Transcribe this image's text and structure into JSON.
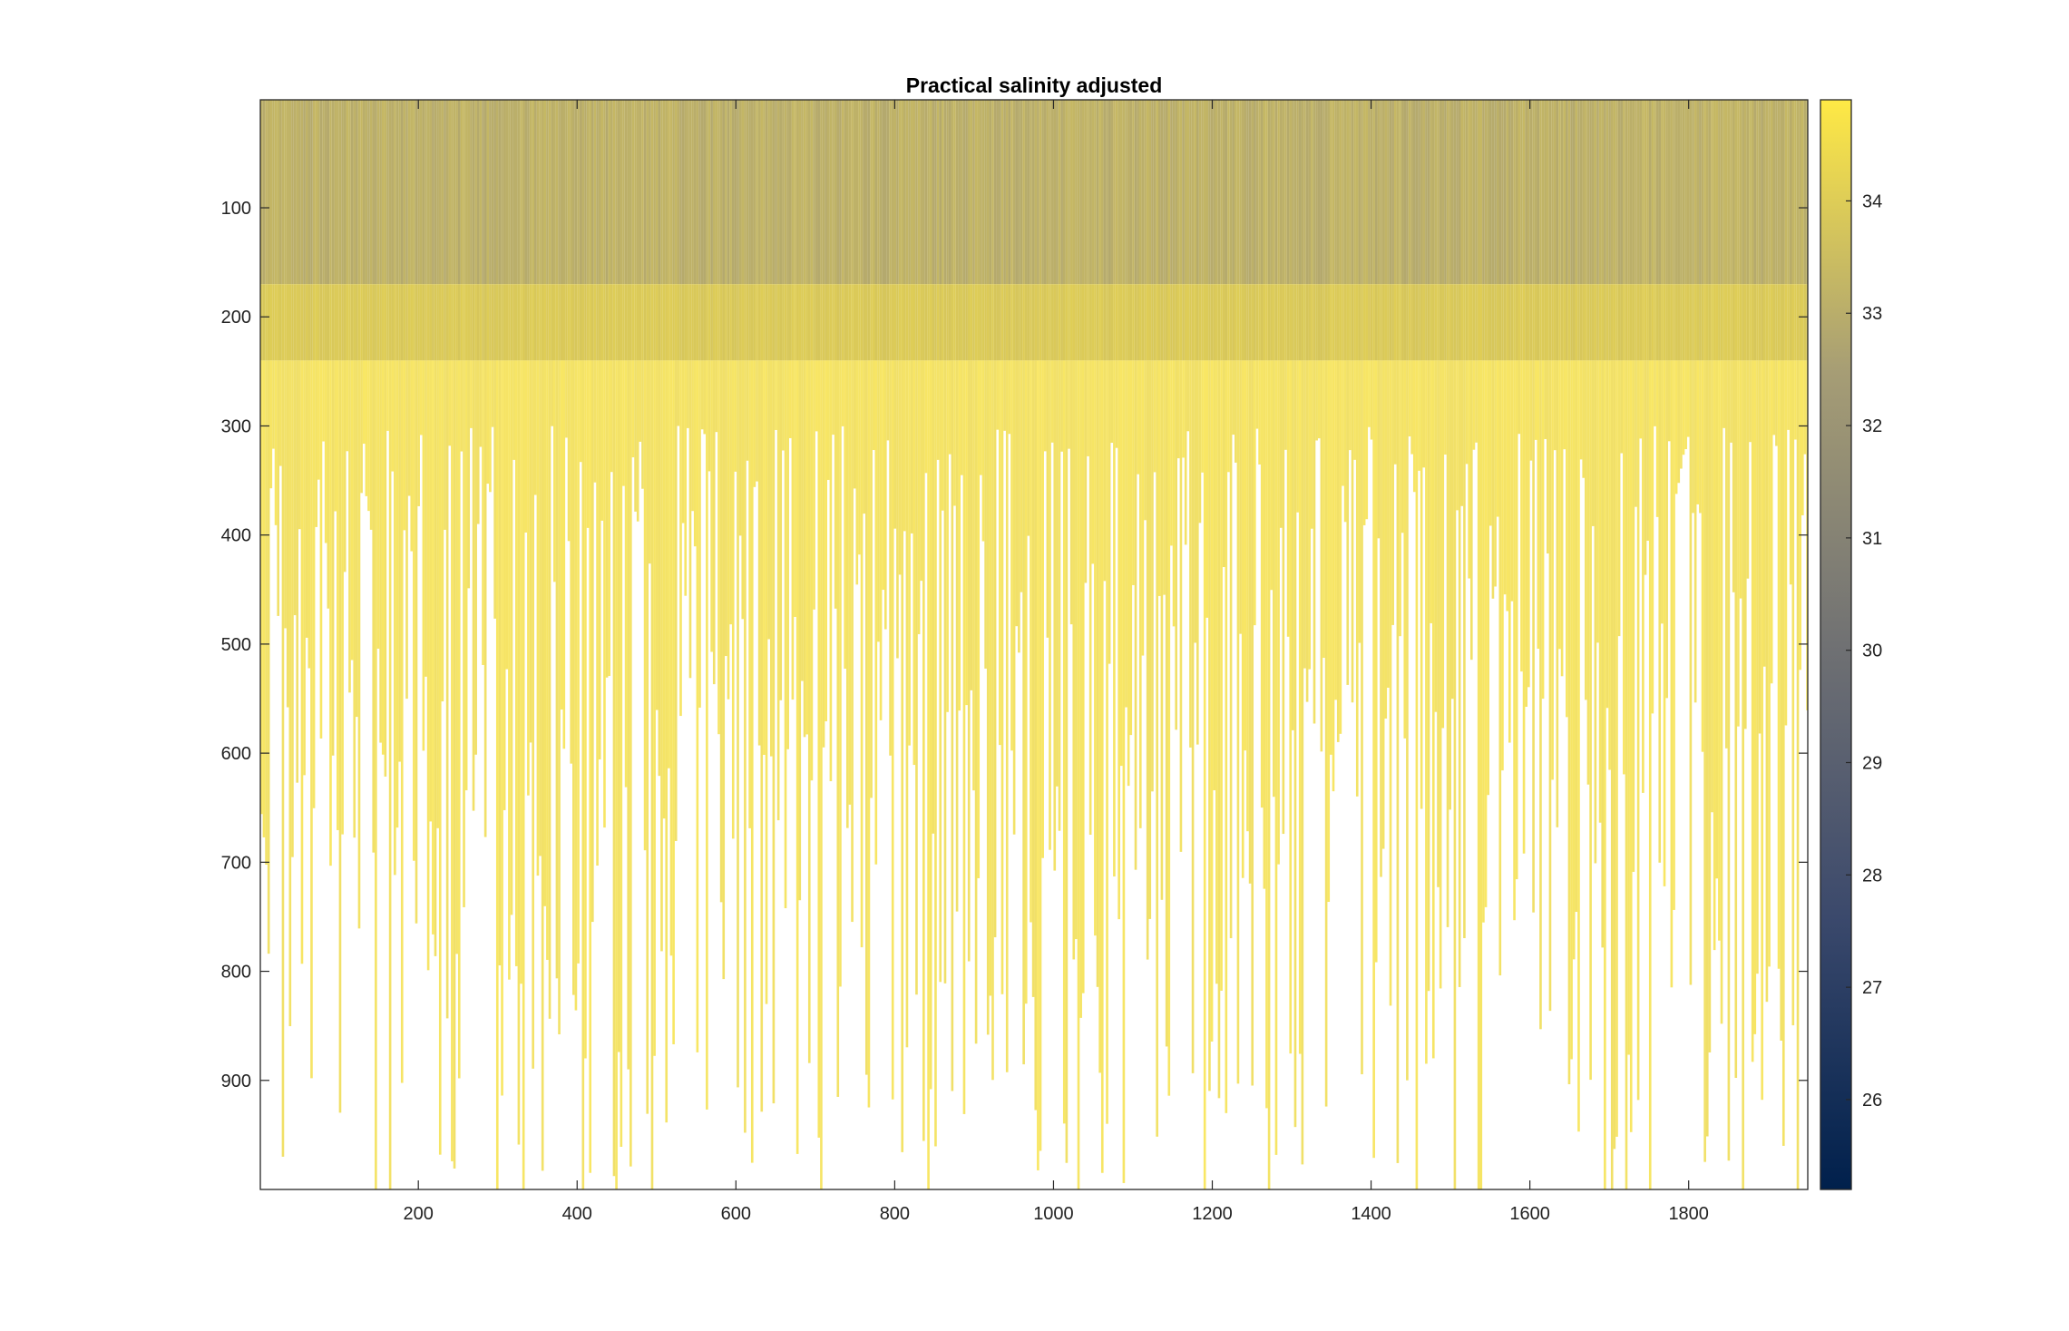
{
  "chart_data": {
    "type": "heatmap",
    "title": "Practical salinity adjusted",
    "xlabel": "",
    "ylabel": "",
    "xlim": [
      1,
      1950
    ],
    "ylim": [
      1,
      1000
    ],
    "y_reversed": true,
    "x_ticks": [
      200,
      400,
      600,
      800,
      1000,
      1200,
      1400,
      1600,
      1800
    ],
    "y_ticks": [
      100,
      200,
      300,
      400,
      500,
      600,
      700,
      800,
      900
    ],
    "colorbar": {
      "range": [
        25.2,
        34.9
      ],
      "ticks": [
        26,
        27,
        28,
        29,
        30,
        31,
        32,
        33,
        34
      ],
      "colormap": "cividis",
      "colors": [
        "#00204c",
        "#3b496c",
        "#707173",
        "#a69d75",
        "#ffe945"
      ]
    },
    "grid": false,
    "description_of_field": {
      "surface_value": 33.1,
      "mid_value": 34.3,
      "profile_depth_typical_range": [
        300,
        1000
      ]
    }
  }
}
